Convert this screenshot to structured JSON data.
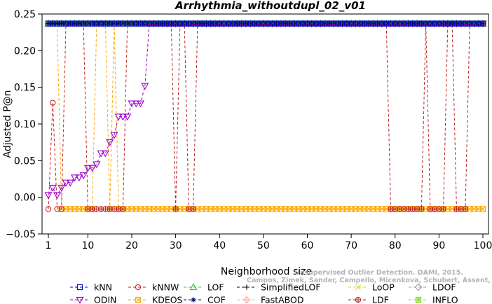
{
  "chart_data": {
    "type": "line",
    "title": "Arrhythmia_withoutdupl_02_v01",
    "xlabel": "Neighborhood size",
    "ylabel": "Adjusted P@n",
    "xlim": [
      1,
      100
    ],
    "ylim": [
      -0.05,
      0.25
    ],
    "xticks": [
      1,
      10,
      20,
      30,
      40,
      50,
      60,
      70,
      80,
      90,
      100
    ],
    "yticks": [
      -0.05,
      0.0,
      0.05,
      0.1,
      0.15,
      0.2,
      0.25
    ],
    "ytick_labels": [
      "−0.05",
      "0.00",
      "0.05",
      "0.10",
      "0.15",
      "0.20",
      "0.25"
    ],
    "top_value": 0.237,
    "low_value": -0.016,
    "grid": false,
    "legend_position": "bottom",
    "series": [
      {
        "name": "kNN",
        "color": "#0000cc",
        "marker": "square",
        "constant": 0.237
      },
      {
        "name": "kNNW",
        "color": "#cc2222",
        "marker": "circle",
        "points": [
          [
            1,
            -0.016
          ],
          [
            2,
            0.129
          ],
          [
            3,
            -0.016
          ],
          [
            4,
            -0.016
          ]
        ],
        "rest_value": 0.237
      },
      {
        "name": "LOF",
        "color": "#22cc22",
        "marker": "triangle",
        "constant": 0.237
      },
      {
        "name": "SimplifiedLOF",
        "color": "#000000",
        "marker": "plus",
        "constant": 0.237
      },
      {
        "name": "LoOP",
        "color": "#dddd00",
        "marker": "x",
        "constant": 0.237
      },
      {
        "name": "LDOF",
        "color": "#999999",
        "marker": "diamond",
        "constant": 0.237
      },
      {
        "name": "ODIN",
        "color": "#9900cc",
        "marker": "triangle-down",
        "points": [
          [
            1,
            0.003
          ],
          [
            2,
            0.013
          ],
          [
            3,
            0.003
          ],
          [
            4,
            0.013
          ],
          [
            5,
            0.02
          ],
          [
            6,
            0.02
          ],
          [
            7,
            0.027
          ],
          [
            8,
            0.027
          ],
          [
            9,
            0.03
          ],
          [
            10,
            0.04
          ],
          [
            11,
            0.04
          ],
          [
            12,
            0.045
          ],
          [
            13,
            0.06
          ],
          [
            14,
            0.06
          ],
          [
            15,
            0.075
          ],
          [
            16,
            0.085
          ],
          [
            17,
            0.11
          ],
          [
            18,
            0.11
          ],
          [
            19,
            0.11
          ],
          [
            20,
            0.128
          ],
          [
            21,
            0.128
          ],
          [
            22,
            0.128
          ],
          [
            23,
            0.152
          ],
          [
            24,
            0.237
          ]
        ],
        "rest_value": 0.237
      },
      {
        "name": "KDEOS",
        "color": "#ffaa00",
        "marker": "square-x",
        "high_x": [
          1,
          2,
          3,
          5,
          6,
          7,
          8,
          9,
          10,
          11,
          12,
          13,
          14,
          16,
          17,
          18,
          19,
          20,
          21,
          22,
          23,
          24,
          25,
          26,
          27,
          28,
          29,
          30,
          31,
          32,
          33,
          34,
          35,
          36,
          37,
          38,
          39,
          40,
          41,
          42,
          43,
          44,
          45,
          46,
          47,
          48,
          49,
          50,
          51,
          52,
          53,
          54,
          55,
          56,
          57,
          58,
          59,
          60,
          61,
          62,
          63,
          64,
          65,
          66,
          67,
          68,
          69,
          70,
          71,
          72,
          73,
          74,
          75,
          76,
          77,
          78,
          79,
          80,
          81,
          82,
          83,
          84,
          85,
          86,
          87,
          88,
          89,
          90,
          91,
          92,
          93,
          94,
          95,
          96,
          97,
          98,
          99,
          100
        ],
        "low_x": [],
        "note": "value is 0.237 for x in [1..3] and 0.237 elsewhere except low segments",
        "low_segments": [
          [
            4,
            11
          ],
          [
            15,
            15
          ],
          [
            17,
            100
          ]
        ],
        "dashed_transitions_x": [
          4,
          5,
          11,
          12,
          15,
          16,
          17
        ]
      },
      {
        "name": "COF",
        "color": "#000066",
        "marker": "asterisk",
        "constant": 0.237
      },
      {
        "name": "FastABOD",
        "color": "#ffaaaa",
        "marker": "diamond-plus",
        "constant": 0.237
      },
      {
        "name": "LDF",
        "color": "#bb2222",
        "marker": "circle-plus",
        "high_segments": [
          [
            1,
            9
          ],
          [
            19,
            29
          ],
          [
            31,
            32
          ],
          [
            35,
            78
          ],
          [
            87,
            87
          ],
          [
            92,
            93
          ],
          [
            97,
            100
          ]
        ],
        "low_segments": [
          [
            10,
            18
          ],
          [
            30,
            30
          ],
          [
            33,
            34
          ],
          [
            79,
            86
          ],
          [
            88,
            91
          ],
          [
            94,
            96
          ]
        ]
      },
      {
        "name": "INFLO",
        "color": "#88dd22",
        "marker": "square-star",
        "constant": 0.237
      }
    ],
    "legend": {
      "row1": [
        "kNN",
        "kNNW",
        "LOF",
        "SimplifiedLOF",
        "LoOP",
        "LDOF"
      ],
      "row2": [
        "ODIN",
        "KDEOS",
        "COF",
        "FastABOD",
        "LDF",
        "INFLO"
      ]
    },
    "watermark_lines": [
      "Unsupervised Outlier Detection. DAMI, 2015.",
      "Campos, Zimek, Sander, Campello, Micenkova, Schubert, Assent, Houle"
    ]
  }
}
